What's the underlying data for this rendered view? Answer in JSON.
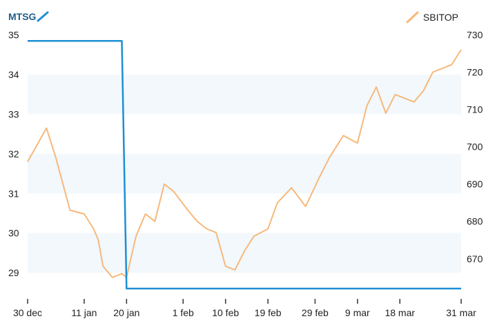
{
  "chart_data": {
    "type": "line",
    "x_tick_labels": [
      "30 dec",
      "11 jan",
      "20 jan",
      "1 feb",
      "10 feb",
      "19 feb",
      "29 feb",
      "9 mar",
      "18 mar",
      "31 mar"
    ],
    "y_left": {
      "ticks": [
        "35",
        "34",
        "33",
        "32",
        "31",
        "30",
        "29"
      ],
      "range": [
        28.6,
        35.1
      ]
    },
    "y_right": {
      "ticks": [
        "730",
        "720",
        "710",
        "700",
        "690",
        "680",
        "670"
      ],
      "range": [
        662,
        731
      ]
    },
    "grid": "alternating horizontal bands",
    "series": [
      {
        "name": "MTSG",
        "axis": "left",
        "color": "#1b8fd3",
        "x": [
          "30 dec",
          "19 jan",
          "20 jan",
          "31 mar"
        ],
        "values": [
          34.85,
          34.85,
          28.6,
          28.6
        ]
      },
      {
        "name": "SBITOP",
        "axis": "right",
        "color": "#f7b87a",
        "x": [
          "30 dec",
          "3 jan",
          "5 jan",
          "8 jan",
          "11 jan",
          "13 jan",
          "14 jan",
          "15 jan",
          "17 jan",
          "19 jan",
          "20 jan",
          "22 jan",
          "24 jan",
          "26 jan",
          "28 jan",
          "30 jan",
          "2 feb",
          "4 feb",
          "6 feb",
          "8 feb",
          "10 feb",
          "12 feb",
          "14 feb",
          "16 feb",
          "19 feb",
          "21 feb",
          "24 feb",
          "27 feb",
          "1 mar",
          "3 mar",
          "6 mar",
          "9 mar",
          "11 mar",
          "13 mar",
          "15 mar",
          "17 mar",
          "19 mar",
          "21 mar",
          "23 mar",
          "25 mar",
          "27 mar",
          "29 mar",
          "31 mar"
        ],
        "values": [
          696,
          705,
          697,
          683,
          682,
          678,
          675,
          668,
          665,
          666,
          665,
          676,
          682,
          680,
          690,
          688,
          683,
          680,
          678,
          677,
          668,
          667,
          672,
          676,
          678,
          685,
          689,
          684,
          692,
          697,
          703,
          701,
          711,
          716,
          709,
          714,
          713,
          712,
          715,
          720,
          721,
          722,
          726
        ]
      }
    ]
  },
  "legend": {
    "left_label": "MTSG",
    "right_label": "SBITOP"
  }
}
